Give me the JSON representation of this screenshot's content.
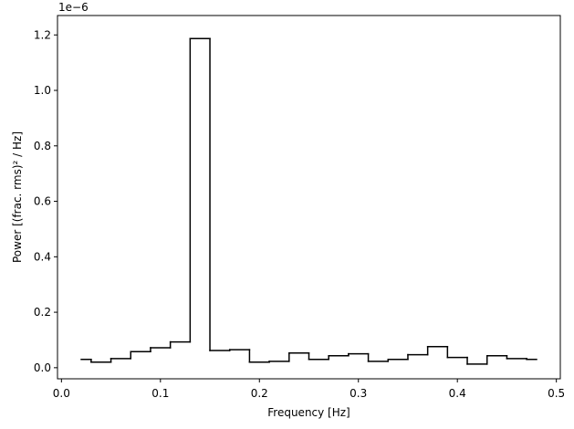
{
  "chart_data": {
    "type": "step",
    "xlabel": "Frequency [Hz]",
    "ylabel": "Power [(frac. rms)² / Hz]",
    "y_offset_label": "1e−6",
    "x": [
      0.02,
      0.04,
      0.06,
      0.08,
      0.1,
      0.12,
      0.14,
      0.16,
      0.18,
      0.2,
      0.22,
      0.24,
      0.26,
      0.28,
      0.3,
      0.32,
      0.34,
      0.36,
      0.38,
      0.4,
      0.42,
      0.44,
      0.46,
      0.48
    ],
    "series": [
      {
        "name": "power",
        "color": "#000000",
        "values": [
          0.03,
          0.02,
          0.033,
          0.058,
          0.072,
          0.093,
          1.187,
          0.062,
          0.065,
          0.02,
          0.023,
          0.053,
          0.03,
          0.043,
          0.05,
          0.023,
          0.03,
          0.047,
          0.076,
          0.037,
          0.013,
          0.043,
          0.033,
          0.03
        ]
      }
    ],
    "xlim": [
      -0.004,
      0.504
    ],
    "ylim": [
      -0.04,
      1.27
    ],
    "xticks": [
      {
        "value": 0,
        "label": "0.0"
      },
      0.1,
      0.2,
      0.3,
      0.4,
      0.5
    ],
    "yticks": [
      {
        "value": 0,
        "label": "0.0"
      },
      0.2,
      0.4,
      0.6,
      0.8,
      {
        "value": 1,
        "label": "1.0"
      },
      1.2
    ]
  }
}
